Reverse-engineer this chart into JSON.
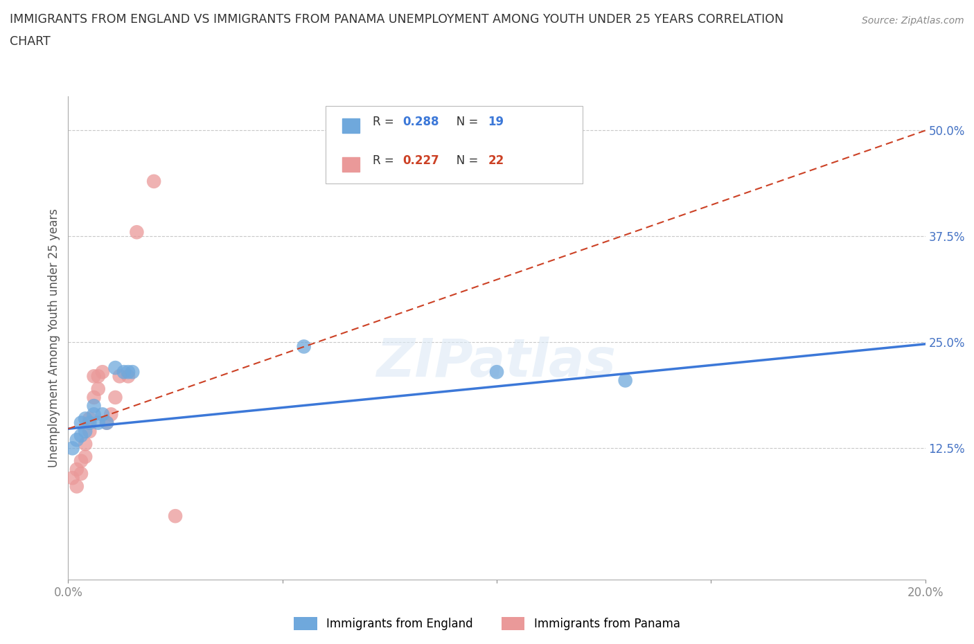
{
  "title_line1": "IMMIGRANTS FROM ENGLAND VS IMMIGRANTS FROM PANAMA UNEMPLOYMENT AMONG YOUTH UNDER 25 YEARS CORRELATION",
  "title_line2": "CHART",
  "source": "Source: ZipAtlas.com",
  "ylabel": "Unemployment Among Youth under 25 years",
  "xlim": [
    0.0,
    0.2
  ],
  "ylim": [
    -0.03,
    0.54
  ],
  "yticks": [
    0.125,
    0.25,
    0.375,
    0.5
  ],
  "ytick_labels": [
    "12.5%",
    "25.0%",
    "37.5%",
    "50.0%"
  ],
  "xticks": [
    0.0,
    0.05,
    0.1,
    0.15,
    0.2
  ],
  "xtick_labels": [
    "0.0%",
    "",
    "",
    "",
    "20.0%"
  ],
  "england_x": [
    0.001,
    0.002,
    0.003,
    0.003,
    0.004,
    0.004,
    0.005,
    0.006,
    0.006,
    0.007,
    0.008,
    0.009,
    0.011,
    0.013,
    0.014,
    0.015,
    0.055,
    0.1,
    0.13
  ],
  "england_y": [
    0.125,
    0.135,
    0.14,
    0.155,
    0.145,
    0.16,
    0.155,
    0.165,
    0.175,
    0.155,
    0.165,
    0.155,
    0.22,
    0.215,
    0.215,
    0.215,
    0.245,
    0.215,
    0.205
  ],
  "panama_x": [
    0.001,
    0.002,
    0.002,
    0.003,
    0.003,
    0.004,
    0.004,
    0.005,
    0.005,
    0.006,
    0.006,
    0.007,
    0.007,
    0.008,
    0.009,
    0.01,
    0.011,
    0.012,
    0.014,
    0.016,
    0.02,
    0.025
  ],
  "panama_y": [
    0.09,
    0.08,
    0.1,
    0.095,
    0.11,
    0.115,
    0.13,
    0.16,
    0.145,
    0.185,
    0.21,
    0.195,
    0.21,
    0.215,
    0.155,
    0.165,
    0.185,
    0.21,
    0.21,
    0.38,
    0.44,
    0.045
  ],
  "england_color": "#6fa8dc",
  "panama_color": "#ea9999",
  "england_line_color": "#3c78d8",
  "panama_line_color": "#cc4125",
  "eng_line_y0": 0.148,
  "eng_line_y1": 0.248,
  "pan_line_y0": 0.148,
  "pan_line_y1": 0.5,
  "R_england": 0.288,
  "N_england": 19,
  "R_panama": 0.227,
  "N_panama": 22,
  "watermark": "ZIPatlas",
  "background_color": "#ffffff",
  "grid_color": "#c8c8c8"
}
